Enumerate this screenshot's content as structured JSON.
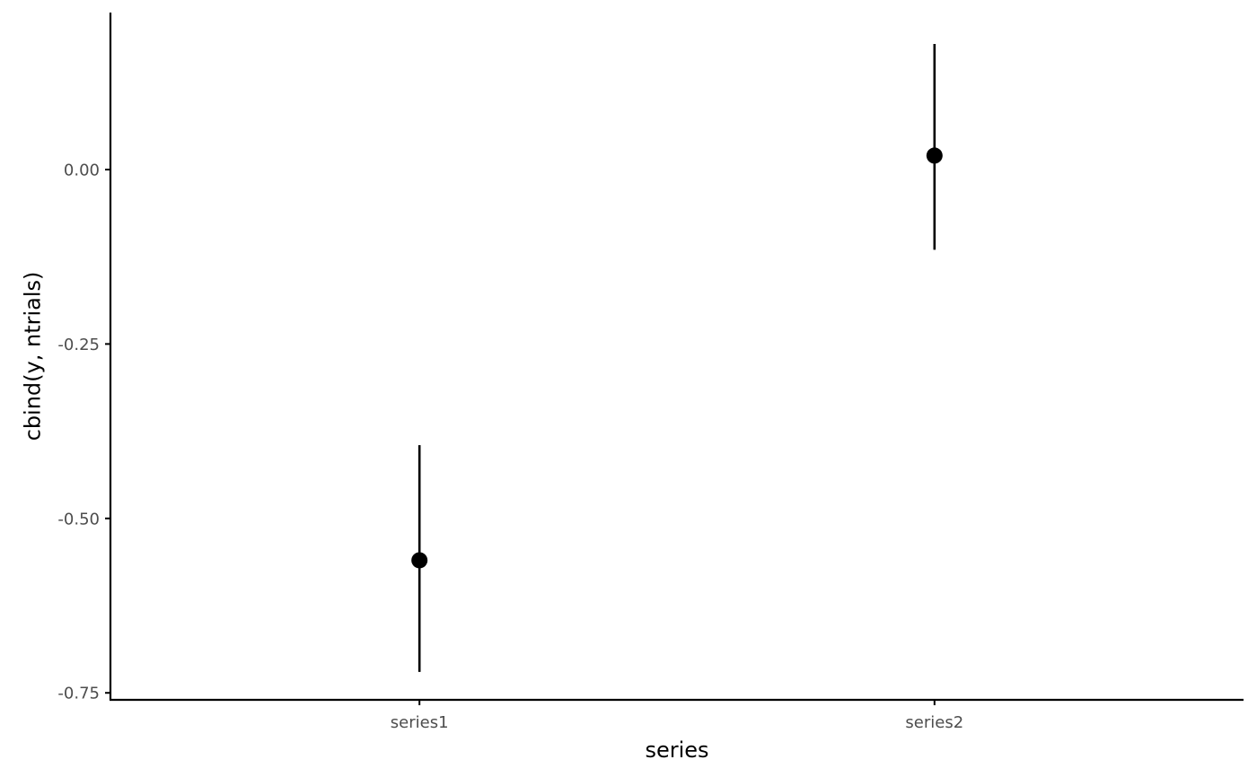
{
  "chart_data": {
    "type": "scatter",
    "title": "",
    "xlabel": "series",
    "ylabel": "cbind(y, ntrials)",
    "categories": [
      "series1",
      "series2"
    ],
    "points": [
      {
        "category": "series1",
        "y": -0.56,
        "lower": -0.72,
        "upper": -0.395
      },
      {
        "category": "series2",
        "y": 0.02,
        "lower": -0.115,
        "upper": 0.18
      }
    ],
    "yticks": [
      {
        "value": 0.0,
        "label": "0.00"
      },
      {
        "value": -0.25,
        "label": "-0.25"
      },
      {
        "value": -0.5,
        "label": "-0.50"
      },
      {
        "value": -0.75,
        "label": "-0.75"
      }
    ],
    "ylim": [
      -0.76,
      0.225
    ],
    "grid": false,
    "legend": "none",
    "point_color": "#000000",
    "line_color": "#000000",
    "axis_color": "#000000",
    "tick_label_color": "#4d4d4d"
  }
}
